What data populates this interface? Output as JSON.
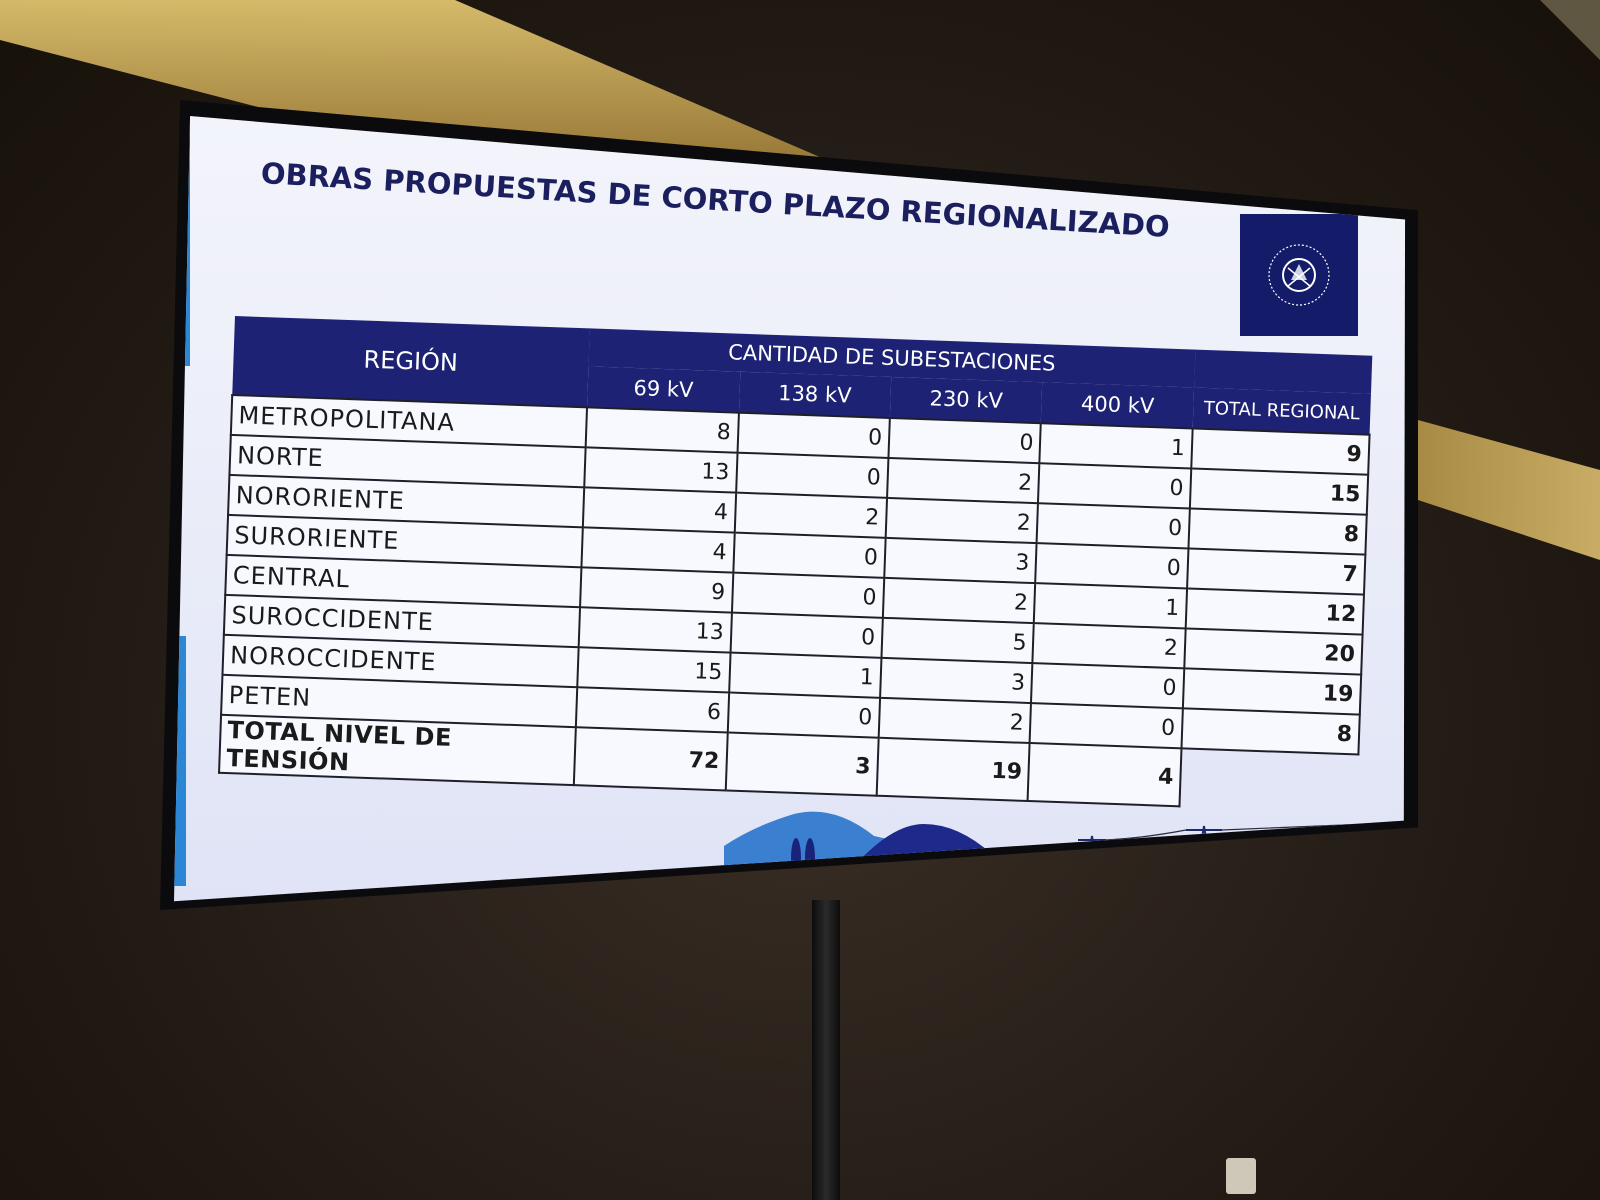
{
  "slide": {
    "title": "OBRAS PROPUESTAS DE CORTO PLAZO REGIONALIZADO"
  },
  "table": {
    "region_header": "REGIÓN",
    "group_header": "CANTIDAD DE SUBESTACIONES",
    "columns": [
      "69 kV",
      "138 kV",
      "230 kV",
      "400 kV",
      "TOTAL REGIONAL"
    ],
    "rows": [
      {
        "name": "METROPOLITANA",
        "v69": "8",
        "v138": "0",
        "v230": "0",
        "v400": "1",
        "total": "9"
      },
      {
        "name": "NORTE",
        "v69": "13",
        "v138": "0",
        "v230": "2",
        "v400": "0",
        "total": "15"
      },
      {
        "name": "NORORIENTE",
        "v69": "4",
        "v138": "2",
        "v230": "2",
        "v400": "0",
        "total": "8"
      },
      {
        "name": "SURORIENTE",
        "v69": "4",
        "v138": "0",
        "v230": "3",
        "v400": "0",
        "total": "7"
      },
      {
        "name": "CENTRAL",
        "v69": "9",
        "v138": "0",
        "v230": "2",
        "v400": "1",
        "total": "12"
      },
      {
        "name": "SUROCCIDENTE",
        "v69": "13",
        "v138": "0",
        "v230": "5",
        "v400": "2",
        "total": "20"
      },
      {
        "name": "NOROCCIDENTE",
        "v69": "15",
        "v138": "1",
        "v230": "3",
        "v400": "0",
        "total": "19"
      },
      {
        "name": "PETEN",
        "v69": "6",
        "v138": "0",
        "v230": "2",
        "v400": "0",
        "total": "8"
      }
    ],
    "total_row": {
      "name": "TOTAL NIVEL DE TENSIÓN",
      "v69": "72",
      "v138": "3",
      "v230": "19",
      "v400": "4"
    }
  },
  "colors": {
    "header_navy": "#1d2275",
    "accent_blue": "#2c86d6",
    "logo_bg": "#141c6a"
  },
  "icons": [
    "coat-of-arms-icon",
    "mountain-icon",
    "tree-icon",
    "transmission-tower-icon"
  ]
}
